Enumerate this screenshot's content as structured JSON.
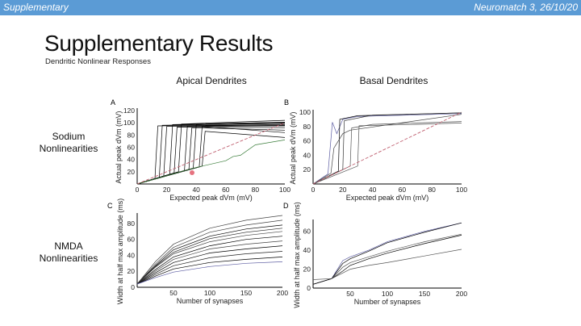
{
  "header": {
    "left": "Supplementary",
    "right": "Neuromatch 3, 26/10/20",
    "color": "#5b9bd5"
  },
  "slide": {
    "title": "Supplementary Results",
    "subtitle": "Dendritic Nonlinear Responses",
    "col_labels": [
      "Apical Dendrites",
      "Basal Dendrites"
    ],
    "row_labels": [
      {
        "l1": "Sodium",
        "l2": "Nonlinearities"
      },
      {
        "l1": "NMDA",
        "l2": "Nonlinearities"
      }
    ]
  },
  "chart_data": [
    {
      "panel": "A",
      "type": "line",
      "xlabel": "Expected peak dVm (mV)",
      "ylabel": "Actual peak dVm (mV)",
      "xlim": [
        0,
        100
      ],
      "ylim": [
        0,
        120
      ],
      "xticks": [
        "0",
        "20",
        "40",
        "60",
        "80",
        "100"
      ],
      "yticks": [
        "20",
        "40",
        "60",
        "80",
        "100",
        "120"
      ],
      "series": [
        {
          "color": "#000000",
          "points": [
            [
              0,
              0
            ],
            [
              12,
              9
            ],
            [
              14,
              95
            ],
            [
              100,
              97
            ]
          ]
        },
        {
          "color": "#000000",
          "points": [
            [
              0,
              0
            ],
            [
              15,
              11
            ],
            [
              17,
              96
            ],
            [
              100,
              99
            ]
          ]
        },
        {
          "color": "#000000",
          "points": [
            [
              0,
              0
            ],
            [
              18,
              13
            ],
            [
              20,
              94
            ],
            [
              100,
              95
            ]
          ]
        },
        {
          "color": "#000000",
          "points": [
            [
              0,
              0
            ],
            [
              22,
              16
            ],
            [
              24,
              97
            ],
            [
              100,
              101
            ]
          ]
        },
        {
          "color": "#000000",
          "points": [
            [
              0,
              0
            ],
            [
              25,
              18
            ],
            [
              27,
              93
            ],
            [
              100,
              92
            ]
          ]
        },
        {
          "color": "#000000",
          "points": [
            [
              0,
              0
            ],
            [
              28,
              20
            ],
            [
              30,
              98
            ],
            [
              100,
              104
            ]
          ]
        },
        {
          "color": "#000000",
          "points": [
            [
              0,
              0
            ],
            [
              32,
              22
            ],
            [
              34,
              95
            ],
            [
              100,
              96
            ]
          ]
        },
        {
          "color": "#000000",
          "points": [
            [
              0,
              0
            ],
            [
              35,
              24
            ],
            [
              37,
              92
            ],
            [
              100,
              88
            ]
          ]
        },
        {
          "color": "#000000",
          "points": [
            [
              0,
              0
            ],
            [
              38,
              26
            ],
            [
              40,
              97
            ],
            [
              100,
              100
            ]
          ]
        },
        {
          "color": "#000000",
          "points": [
            [
              0,
              0
            ],
            [
              42,
              28
            ],
            [
              44,
              94
            ],
            [
              100,
              84
            ]
          ]
        },
        {
          "color": "#000000",
          "points": [
            [
              0,
              0
            ],
            [
              44,
              29
            ],
            [
              46,
              86
            ],
            [
              100,
              76
            ]
          ]
        },
        {
          "color": "#3a7d3a",
          "points": [
            [
              0,
              0
            ],
            [
              40,
              27
            ],
            [
              60,
              38
            ],
            [
              65,
              45
            ],
            [
              70,
              47
            ],
            [
              80,
              64
            ],
            [
              100,
              72
            ]
          ]
        },
        {
          "color": "#c06070",
          "dashed": true,
          "points": [
            [
              0,
              0
            ],
            [
              100,
              100
            ]
          ]
        }
      ]
    },
    {
      "panel": "B",
      "type": "line",
      "xlabel": "Expected peak dVm (mV)",
      "ylabel": "Actual peak dVm (mV)",
      "xlim": [
        0,
        100
      ],
      "ylim": [
        0,
        100
      ],
      "xticks": [
        "0",
        "20",
        "40",
        "60",
        "80",
        "100"
      ],
      "yticks": [
        "20",
        "40",
        "60",
        "80",
        "100"
      ],
      "series": [
        {
          "color": "#5a5aa0",
          "points": [
            [
              0,
              0
            ],
            [
              10,
              14
            ],
            [
              13,
              86
            ],
            [
              16,
              70
            ],
            [
              20,
              90
            ],
            [
              30,
              94
            ],
            [
              100,
              98
            ]
          ]
        },
        {
          "color": "#000000",
          "points": [
            [
              0,
              0
            ],
            [
              17,
              18
            ],
            [
              18,
              90
            ],
            [
              30,
              95
            ],
            [
              100,
              99
            ]
          ]
        },
        {
          "color": "#333333",
          "points": [
            [
              0,
              0
            ],
            [
              20,
              20
            ],
            [
              21,
              88
            ],
            [
              40,
              96
            ],
            [
              100,
              99
            ]
          ]
        },
        {
          "color": "#555555",
          "points": [
            [
              0,
              0
            ],
            [
              25,
              25
            ],
            [
              26,
              78
            ],
            [
              40,
              83
            ],
            [
              100,
              87
            ]
          ]
        },
        {
          "color": "#555555",
          "points": [
            [
              0,
              0
            ],
            [
              30,
              25
            ],
            [
              31,
              81
            ],
            [
              70,
              83
            ],
            [
              100,
              85
            ]
          ]
        },
        {
          "color": "#444444",
          "points": [
            [
              0,
              0
            ],
            [
              12,
              15
            ],
            [
              14,
              50
            ],
            [
              20,
              70
            ],
            [
              25,
              75
            ],
            [
              100,
              97
            ]
          ]
        },
        {
          "color": "#c06070",
          "dashed": true,
          "points": [
            [
              0,
              0
            ],
            [
              100,
              100
            ]
          ]
        }
      ]
    },
    {
      "panel": "C",
      "type": "line",
      "xlabel": "Number of synapses",
      "ylabel": "Width at half max amplitude (ms)",
      "xlim": [
        0,
        200
      ],
      "ylim": [
        0,
        90
      ],
      "xticks": [
        "50",
        "100",
        "150",
        "200"
      ],
      "yticks": [
        "0",
        "20",
        "40",
        "60",
        "80"
      ],
      "x": [
        0,
        25,
        50,
        100,
        150,
        200
      ],
      "series": [
        {
          "color": "#444444",
          "values": [
            4,
            32,
            54,
            74,
            84,
            90
          ]
        },
        {
          "color": "#444444",
          "values": [
            4,
            29,
            50,
            69,
            78,
            84
          ]
        },
        {
          "color": "#000000",
          "values": [
            4,
            27,
            47,
            64,
            73,
            78
          ]
        },
        {
          "color": "#222222",
          "values": [
            4,
            26,
            44,
            61,
            69,
            74
          ]
        },
        {
          "color": "#444444",
          "values": [
            4,
            25,
            42,
            57,
            65,
            70
          ]
        },
        {
          "color": "#000000",
          "values": [
            4,
            22,
            38,
            52,
            60,
            64
          ]
        },
        {
          "color": "#444444",
          "values": [
            4,
            20,
            35,
            48,
            54,
            58
          ]
        },
        {
          "color": "#000000",
          "values": [
            4,
            18,
            31,
            43,
            48,
            52
          ]
        },
        {
          "color": "#222222",
          "values": [
            4,
            16,
            27,
            37,
            42,
            45
          ]
        },
        {
          "color": "#000000",
          "values": [
            4,
            14,
            23,
            31,
            35,
            38
          ]
        },
        {
          "color": "#5a5aa0",
          "values": [
            4,
            12,
            19,
            26,
            30,
            32
          ]
        }
      ]
    },
    {
      "panel": "D",
      "type": "line",
      "xlabel": "Number of synapses",
      "ylabel": "Width at half max amplitude (ms)",
      "xlim": [
        0,
        200
      ],
      "ylim": [
        0,
        70
      ],
      "xticks": [
        "50",
        "100",
        "150",
        "200"
      ],
      "yticks": [
        "0",
        "20",
        "40",
        "60"
      ],
      "x": [
        0,
        25,
        40,
        50,
        75,
        100,
        150,
        200
      ],
      "series": [
        {
          "color": "#5a5aa0",
          "values": [
            4,
            10,
            29,
            33,
            40,
            49,
            60,
            69
          ]
        },
        {
          "color": "#000000",
          "values": [
            4,
            10,
            26,
            31,
            39,
            48,
            59,
            69
          ]
        },
        {
          "color": "#555555",
          "values": [
            4,
            10,
            22,
            27,
            33,
            39,
            49,
            57
          ]
        },
        {
          "color": "#000000",
          "values": [
            4,
            10,
            18,
            24,
            31,
            37,
            47,
            56
          ]
        },
        {
          "color": "#555555",
          "values": [
            9,
            10,
            16,
            20,
            24,
            27,
            34,
            41
          ]
        }
      ]
    }
  ]
}
